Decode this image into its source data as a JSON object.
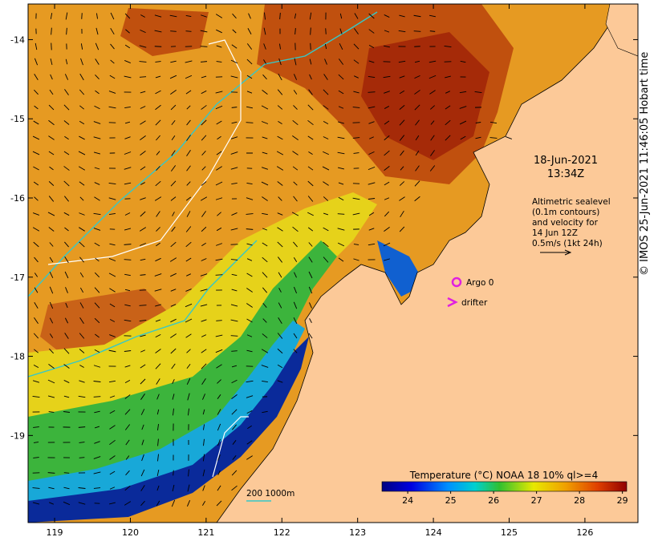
{
  "map": {
    "lon_range": [
      118.65,
      126.7
    ],
    "lat_range": [
      -20.1,
      -13.55
    ],
    "lon_ticks": [
      "119",
      "120",
      "121",
      "122",
      "123",
      "124",
      "125",
      "126"
    ],
    "lat_ticks": [
      "-14",
      "-15",
      "-16",
      "-17",
      "-18",
      "-19"
    ],
    "land_color": "#fcc998",
    "cool_water_color": "#0a2a9a"
  },
  "annotations": {
    "date": "18-Jun-2021",
    "time": "13:34Z",
    "altimetry_note": [
      "Altimetric sealevel",
      "(0.1m contours)",
      "and velocity for",
      "14 Jun 12Z",
      "0.5m/s (1kt 24h)"
    ]
  },
  "legend": {
    "argo_label": "Argo 0",
    "drifter_label": "drifter",
    "argo_color": "#e020e0",
    "drifter_color": "#e020e0",
    "depth_scale": "200  1000m"
  },
  "colorbar": {
    "title": "Temperature (°C) NOAA 18 10% ql>=4",
    "ticks": [
      "24",
      "25",
      "26",
      "27",
      "28",
      "29"
    ],
    "range": [
      23.4,
      29.1
    ]
  },
  "credit": "© IMOS 25-Jun-2021 11:46:05 Hobart time"
}
